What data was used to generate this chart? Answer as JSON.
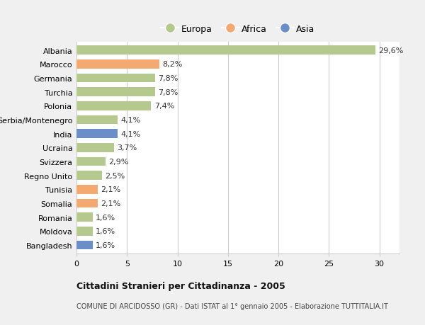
{
  "categories": [
    "Albania",
    "Marocco",
    "Germania",
    "Turchia",
    "Polonia",
    "Serbia/Montenegro",
    "India",
    "Ucraina",
    "Svizzera",
    "Regno Unito",
    "Tunisia",
    "Somalia",
    "Romania",
    "Moldova",
    "Bangladesh"
  ],
  "values": [
    29.6,
    8.2,
    7.8,
    7.8,
    7.4,
    4.1,
    4.1,
    3.7,
    2.9,
    2.5,
    2.1,
    2.1,
    1.6,
    1.6,
    1.6
  ],
  "labels": [
    "29,6%",
    "8,2%",
    "7,8%",
    "7,8%",
    "7,4%",
    "4,1%",
    "4,1%",
    "3,7%",
    "2,9%",
    "2,5%",
    "2,1%",
    "2,1%",
    "1,6%",
    "1,6%",
    "1,6%"
  ],
  "continents": [
    "Europa",
    "Africa",
    "Europa",
    "Europa",
    "Europa",
    "Europa",
    "Asia",
    "Europa",
    "Europa",
    "Europa",
    "Africa",
    "Africa",
    "Europa",
    "Europa",
    "Asia"
  ],
  "colors": {
    "Europa": "#b5c98e",
    "Africa": "#f4a970",
    "Asia": "#6b8ec9"
  },
  "xlim": [
    0,
    32
  ],
  "xticks": [
    0,
    5,
    10,
    15,
    20,
    25,
    30
  ],
  "title": "Cittadini Stranieri per Cittadinanza - 2005",
  "subtitle": "COMUNE DI ARCIDOSSO (GR) - Dati ISTAT al 1° gennaio 2005 - Elaborazione TUTTITALIA.IT",
  "background_color": "#f0f0f0",
  "plot_background": "#ffffff",
  "bar_height": 0.65,
  "grid_color": "#cccccc",
  "label_fontsize": 8,
  "ytick_fontsize": 8,
  "xtick_fontsize": 8
}
